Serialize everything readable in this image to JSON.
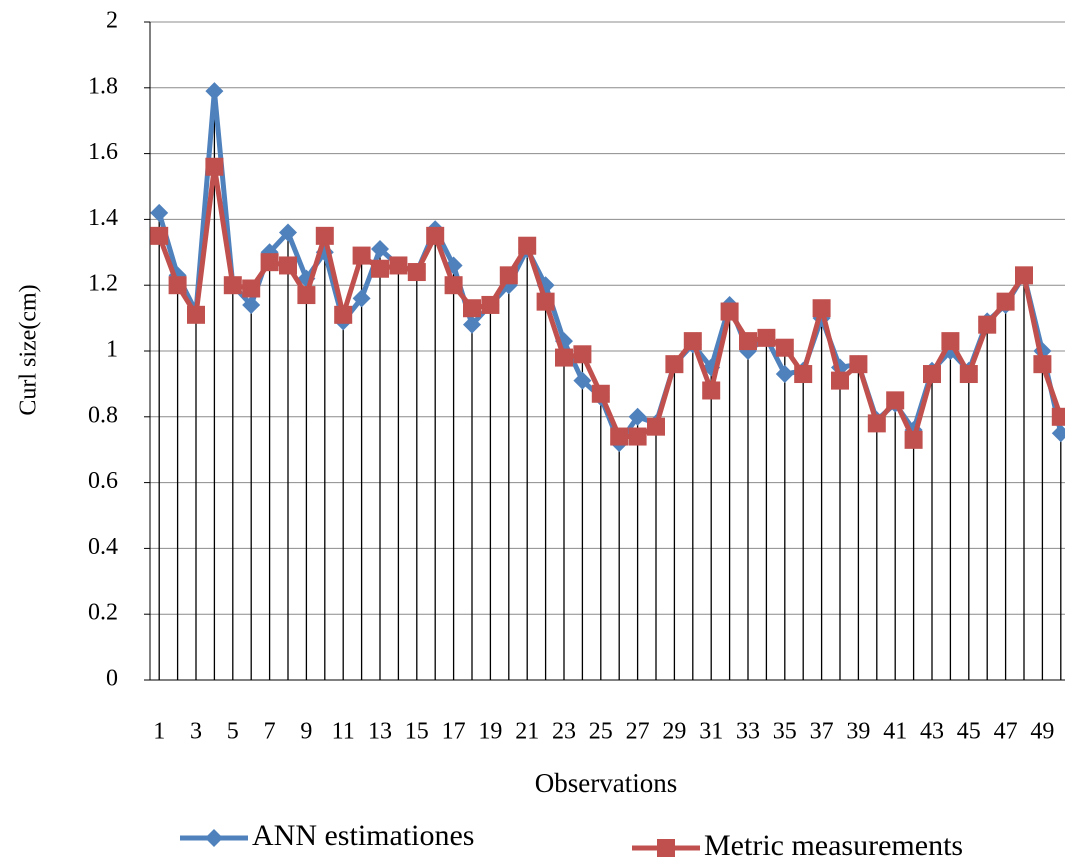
{
  "chart_data": {
    "type": "line",
    "x_label": "Observations",
    "y_label": "Curl size(cm)",
    "categories": [
      "1",
      null,
      "3",
      null,
      "5",
      null,
      "7",
      null,
      "9",
      null,
      "11",
      null,
      "13",
      null,
      "15",
      null,
      "17",
      null,
      "19",
      null,
      "21",
      null,
      "23",
      null,
      "25",
      null,
      "27",
      null,
      "29",
      null,
      "31",
      null,
      "33",
      null,
      "35",
      null,
      "37",
      null,
      "39",
      null,
      "41",
      null,
      "43",
      null,
      "45",
      null,
      "47",
      null,
      "49",
      null
    ],
    "series": [
      {
        "name": "ANN estimationes",
        "color": "#4f81bd",
        "marker": "diamond",
        "values": [
          1.42,
          1.23,
          1.12,
          1.79,
          1.2,
          1.14,
          1.3,
          1.36,
          1.22,
          1.3,
          1.09,
          1.16,
          1.31,
          1.26,
          1.24,
          1.37,
          1.26,
          1.08,
          1.14,
          1.2,
          1.31,
          1.2,
          1.03,
          0.91,
          0.86,
          0.72,
          0.8,
          0.78,
          0.96,
          1.02,
          0.95,
          1.14,
          1.0,
          1.04,
          0.93,
          0.94,
          1.1,
          0.95,
          0.96,
          0.79,
          0.84,
          0.76,
          0.94,
          1.0,
          0.94,
          1.09,
          1.14,
          1.23,
          1.0,
          0.75
        ]
      },
      {
        "name": "Metric measurements",
        "color": "#c0504d",
        "marker": "square",
        "values": [
          1.35,
          1.2,
          1.11,
          1.56,
          1.2,
          1.19,
          1.27,
          1.26,
          1.17,
          1.35,
          1.11,
          1.29,
          1.25,
          1.26,
          1.24,
          1.35,
          1.2,
          1.13,
          1.14,
          1.23,
          1.32,
          1.15,
          0.98,
          0.99,
          0.87,
          0.74,
          0.74,
          0.77,
          0.96,
          1.03,
          0.88,
          1.12,
          1.03,
          1.04,
          1.01,
          0.93,
          1.13,
          0.91,
          0.96,
          0.78,
          0.85,
          0.73,
          0.93,
          1.03,
          0.93,
          1.08,
          1.15,
          1.23,
          0.96,
          0.8
        ]
      }
    ],
    "ylim": [
      0,
      2
    ],
    "yticks": [
      0,
      {
        "value": 0.2,
        "label": "0.2"
      },
      {
        "value": 0.4,
        "label": "0.4"
      },
      {
        "value": 0.6,
        "label": "0.6"
      },
      {
        "value": 0.8,
        "label": "0.8"
      },
      1,
      {
        "value": 1.2,
        "label": "1.2"
      },
      {
        "value": 1.4,
        "label": "1.4"
      },
      {
        "value": 1.6,
        "label": "1.6"
      },
      {
        "value": 1.8,
        "label": "1.8"
      },
      2
    ],
    "grid": true,
    "drop_lines": true,
    "legend": "bottom"
  }
}
